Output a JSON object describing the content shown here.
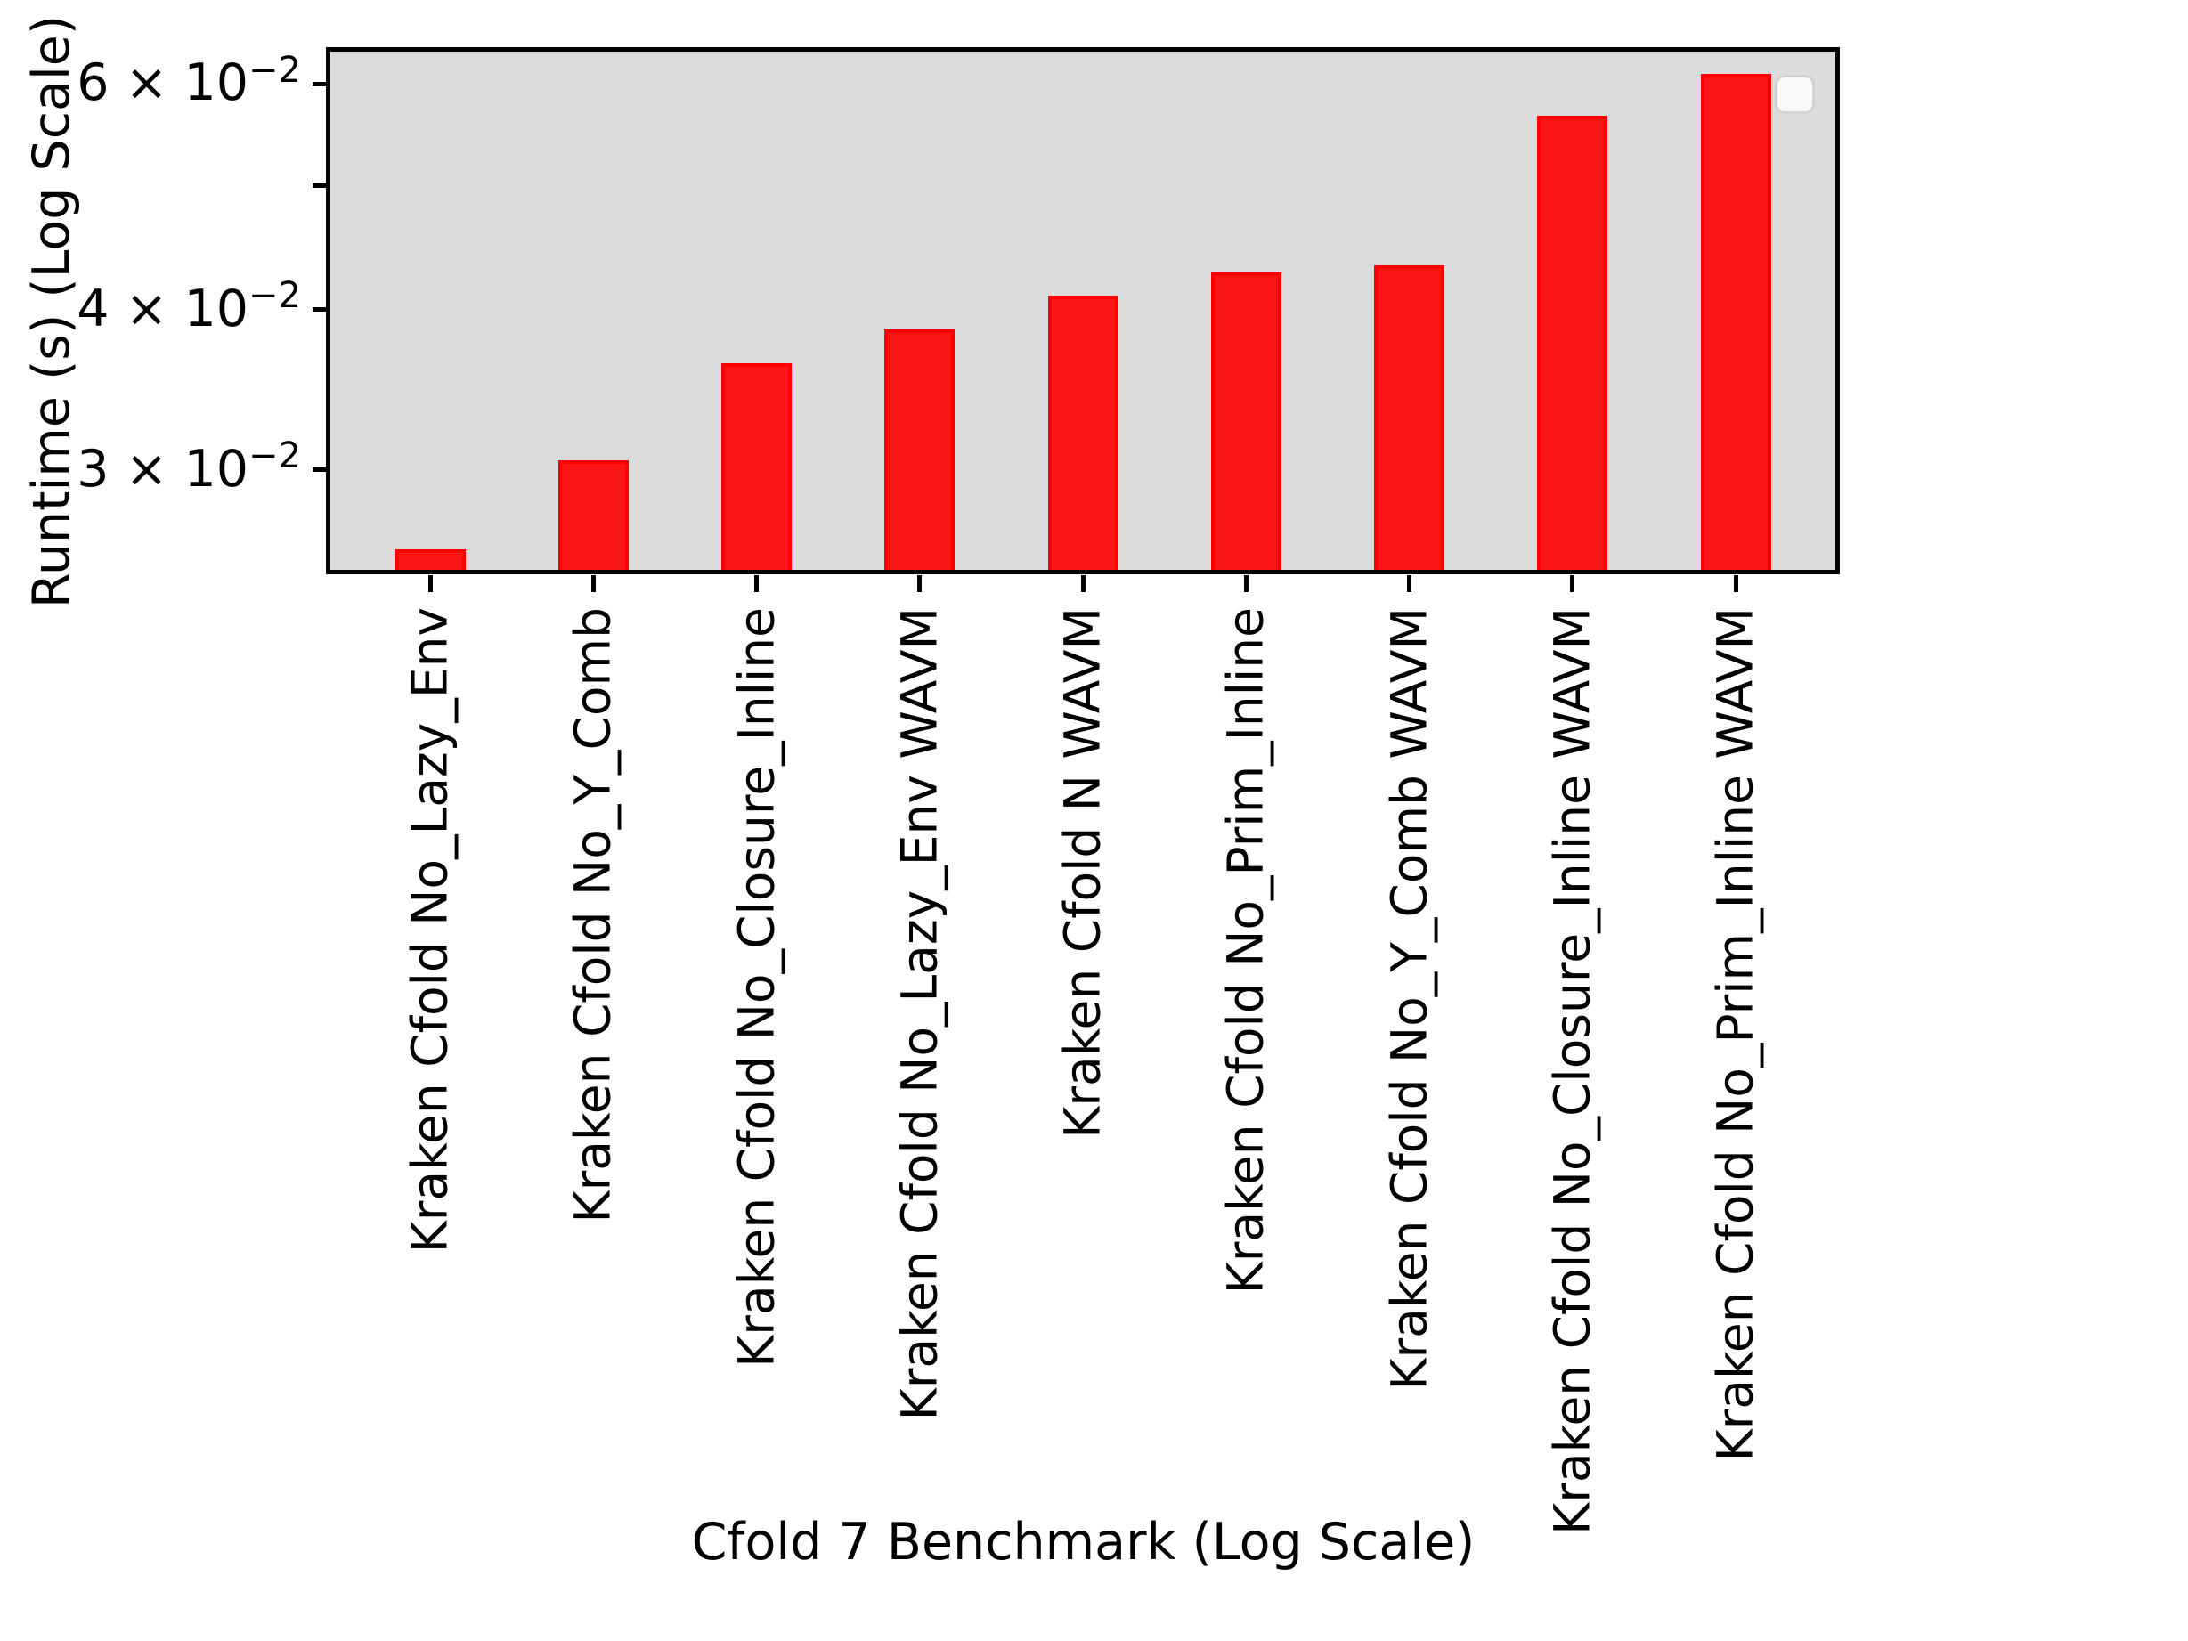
{
  "chart_data": {
    "type": "bar",
    "title": "",
    "xlabel": "Cfold 7 Benchmark (Log Scale)",
    "ylabel": "Runtime (s) (Log Scale)",
    "yscale": "log",
    "ylim": [
      0.0249,
      0.0636
    ],
    "grid": false,
    "categories": [
      "Kraken Cfold No_Lazy_Env",
      "Kraken Cfold No_Y_Comb",
      "Kraken Cfold No_Closure_Inline",
      "Kraken Cfold No_Lazy_Env WAVM",
      "Kraken Cfold N WAVM",
      "Kraken Cfold No_Prim_Inline",
      "Kraken Cfold No_Y_Comb WAVM",
      "Kraken Cfold No_Closure_Inline WAVM",
      "Kraken Cfold No_Prim_Inline WAVM"
    ],
    "values": [
      0.026,
      0.0305,
      0.0363,
      0.0386,
      0.041,
      0.0428,
      0.0433,
      0.0567,
      0.0611
    ],
    "yticks": [
      {
        "value": 0.06,
        "mantissa": "6 × 10",
        "exponent": "−2",
        "labeled": true
      },
      {
        "value": 0.05,
        "mantissa": "",
        "exponent": "",
        "labeled": false
      },
      {
        "value": 0.04,
        "mantissa": "4 × 10",
        "exponent": "−2",
        "labeled": true
      },
      {
        "value": 0.03,
        "mantissa": "3 × 10",
        "exponent": "−2",
        "labeled": true
      }
    ],
    "legend": {
      "visible": true,
      "position": "upper right",
      "entries": []
    },
    "colors": {
      "bar_fill": "#fa1616",
      "bar_edge": "#ff0000",
      "plot_background": "#dcdcdc",
      "figure_background": "#ffffff",
      "axis": "#000000",
      "text": "#000000"
    }
  }
}
